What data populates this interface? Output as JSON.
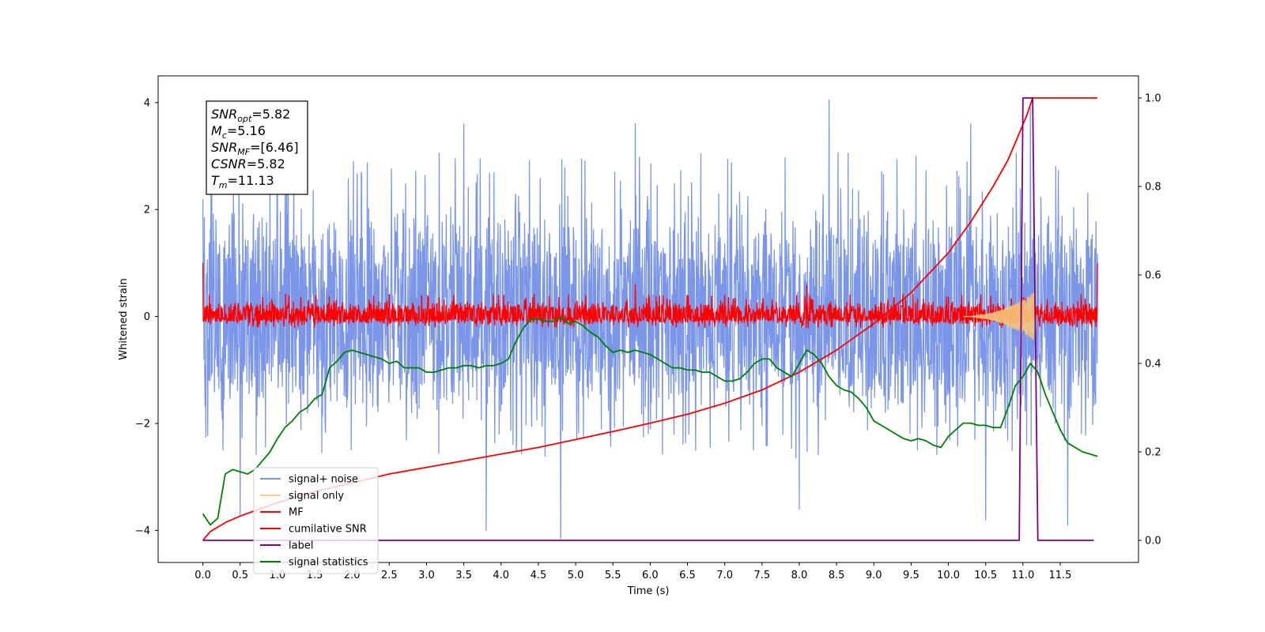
{
  "chart_data": {
    "type": "line",
    "title": "",
    "xlabel": "Time (s)",
    "ylabel_left": "Whitened strain",
    "ylabel_right": "",
    "xlim": [
      -0.6,
      12.55
    ],
    "ylim_left": [
      -4.6,
      4.5
    ],
    "ylim_right": [
      -0.05,
      1.05
    ],
    "x_ticks": [
      0.0,
      0.5,
      1.0,
      1.5,
      2.0,
      2.5,
      3.0,
      3.5,
      4.0,
      4.5,
      5.0,
      5.5,
      6.0,
      6.5,
      7.0,
      7.5,
      8.0,
      8.5,
      9.0,
      9.5,
      10.0,
      10.5,
      11.0,
      11.5
    ],
    "x_tick_labels": [
      "0.0",
      "0.5",
      "1.0",
      "1.5",
      "2.0",
      "2.5",
      "3.0",
      "3.5",
      "4.0",
      "4.5",
      "5.0",
      "5.5",
      "6.0",
      "6.5",
      "7.0",
      "7.5",
      "8.0",
      "8.5",
      "9.0",
      "9.5",
      "10.0",
      "10.5",
      "11.0",
      "11.5"
    ],
    "y_ticks_left": [
      -4,
      -2,
      0,
      2,
      4
    ],
    "y_tick_labels_left": [
      "−4",
      "−2",
      "0",
      "2",
      "4"
    ],
    "y_ticks_right": [
      0.0,
      0.2,
      0.4,
      0.6,
      0.8,
      1.0
    ],
    "y_tick_labels_right": [
      "0.0",
      "0.2",
      "0.4",
      "0.6",
      "0.8",
      "1.0"
    ],
    "legend_placement": "lower-left",
    "annotation": {
      "lines": [
        {
          "sym": "SNR",
          "sub": "opt",
          "value": "=5.82"
        },
        {
          "sym": "M",
          "sub": "c",
          "value": "=5.16"
        },
        {
          "sym": "SNR",
          "sub": "MF",
          "value": "=[6.46]"
        },
        {
          "sym": "CSNR",
          "sub": "",
          "value": "=5.82"
        },
        {
          "sym": "T",
          "sub": "m",
          "value": "=11.13"
        }
      ]
    },
    "series": [
      {
        "name": "signal+ noise",
        "axis": "left",
        "color": "#7b96e8",
        "style": "noise",
        "x_range": [
          0.0,
          12.0
        ],
        "envelope_upper": 2.2,
        "envelope_lower": -1.9,
        "peaks": [
          [
            0.0,
            2.2
          ],
          [
            1.0,
            3.3
          ],
          [
            3.5,
            3.6
          ],
          [
            5.8,
            3.6
          ],
          [
            8.4,
            4.05
          ],
          [
            10.3,
            3.6
          ],
          [
            11.1,
            3.9
          ]
        ],
        "troughs": [
          [
            0.5,
            -3.7
          ],
          [
            3.8,
            -4.0
          ],
          [
            4.8,
            -4.15
          ],
          [
            8.0,
            -3.6
          ],
          [
            10.5,
            -3.8
          ],
          [
            11.6,
            -3.9
          ]
        ]
      },
      {
        "name": "signal only",
        "axis": "left",
        "color": "#f5c77a",
        "style": "chirp",
        "x_range": [
          10.2,
          11.15
        ],
        "peak_amplitude": 0.45
      },
      {
        "name": "MF",
        "axis": "left",
        "color": "#ff0000",
        "style": "noise",
        "x_range": [
          0.0,
          12.0
        ],
        "envelope_upper": 0.3,
        "envelope_lower": -0.15,
        "peaks": [
          [
            0.0,
            1.0
          ],
          [
            5.8,
            0.6
          ],
          [
            8.1,
            0.58
          ],
          [
            12.0,
            1.0
          ]
        ],
        "troughs": []
      },
      {
        "name": "cumilative SNR",
        "axis": "right",
        "color": "#ff0000",
        "style": "line",
        "x": [
          0.0,
          0.1,
          0.3,
          0.5,
          1.0,
          1.5,
          2.0,
          2.5,
          3.0,
          3.5,
          4.0,
          4.5,
          5.0,
          5.5,
          6.0,
          6.5,
          7.0,
          7.5,
          8.0,
          8.5,
          9.0,
          9.5,
          10.0,
          10.3,
          10.6,
          10.8,
          11.0,
          11.05,
          11.1,
          11.13,
          11.2,
          11.5,
          12.0
        ],
        "y": [
          0.0,
          0.02,
          0.04,
          0.055,
          0.085,
          0.11,
          0.13,
          0.15,
          0.165,
          0.18,
          0.195,
          0.21,
          0.228,
          0.246,
          0.265,
          0.285,
          0.31,
          0.34,
          0.38,
          0.43,
          0.49,
          0.56,
          0.65,
          0.72,
          0.8,
          0.86,
          0.94,
          0.96,
          0.985,
          1.0,
          1.0,
          1.0,
          1.0
        ]
      },
      {
        "name": "label",
        "axis": "right",
        "color": "#800080",
        "style": "line",
        "x": [
          0.0,
          10.95,
          11.0,
          11.13,
          11.2,
          11.95
        ],
        "y": [
          0.0,
          0.0,
          1.0,
          1.0,
          0.0,
          0.0
        ]
      },
      {
        "name": "signal statistics",
        "axis": "right",
        "color": "#008000",
        "style": "line",
        "x": [
          0.0,
          0.1,
          0.2,
          0.3,
          0.4,
          0.5,
          0.6,
          0.7,
          0.8,
          0.9,
          1.0,
          1.1,
          1.2,
          1.3,
          1.4,
          1.5,
          1.6,
          1.7,
          1.8,
          1.9,
          2.0,
          2.1,
          2.2,
          2.3,
          2.4,
          2.5,
          2.6,
          2.7,
          2.8,
          2.9,
          3.0,
          3.1,
          3.2,
          3.3,
          3.4,
          3.5,
          3.6,
          3.7,
          3.8,
          3.9,
          4.0,
          4.1,
          4.2,
          4.3,
          4.4,
          4.5,
          4.6,
          4.7,
          4.8,
          4.9,
          5.0,
          5.1,
          5.2,
          5.3,
          5.4,
          5.5,
          5.6,
          5.7,
          5.8,
          5.9,
          6.0,
          6.1,
          6.2,
          6.3,
          6.4,
          6.5,
          6.6,
          6.7,
          6.8,
          6.9,
          7.0,
          7.1,
          7.2,
          7.3,
          7.4,
          7.5,
          7.6,
          7.7,
          7.8,
          7.9,
          8.0,
          8.1,
          8.2,
          8.3,
          8.4,
          8.5,
          8.6,
          8.7,
          8.8,
          8.9,
          9.0,
          9.1,
          9.2,
          9.3,
          9.4,
          9.5,
          9.6,
          9.7,
          9.8,
          9.9,
          10.0,
          10.1,
          10.2,
          10.3,
          10.4,
          10.5,
          10.6,
          10.7,
          10.8,
          10.9,
          11.0,
          11.1,
          11.2,
          11.3,
          11.4,
          11.5,
          11.6,
          11.7,
          11.8,
          11.9,
          12.0
        ],
        "y": [
          0.06,
          0.035,
          0.05,
          0.15,
          0.16,
          0.155,
          0.15,
          0.16,
          0.18,
          0.2,
          0.23,
          0.255,
          0.27,
          0.29,
          0.3,
          0.32,
          0.33,
          0.39,
          0.405,
          0.425,
          0.43,
          0.425,
          0.42,
          0.415,
          0.41,
          0.4,
          0.405,
          0.39,
          0.39,
          0.39,
          0.38,
          0.38,
          0.385,
          0.39,
          0.39,
          0.395,
          0.395,
          0.39,
          0.395,
          0.395,
          0.4,
          0.41,
          0.45,
          0.48,
          0.5,
          0.5,
          0.495,
          0.495,
          0.505,
          0.49,
          0.495,
          0.485,
          0.47,
          0.46,
          0.44,
          0.425,
          0.43,
          0.425,
          0.43,
          0.425,
          0.42,
          0.41,
          0.4,
          0.39,
          0.39,
          0.385,
          0.385,
          0.38,
          0.38,
          0.37,
          0.36,
          0.36,
          0.365,
          0.38,
          0.4,
          0.41,
          0.41,
          0.39,
          0.38,
          0.37,
          0.4,
          0.43,
          0.42,
          0.4,
          0.37,
          0.35,
          0.34,
          0.335,
          0.32,
          0.3,
          0.27,
          0.26,
          0.25,
          0.24,
          0.23,
          0.225,
          0.23,
          0.225,
          0.215,
          0.21,
          0.235,
          0.25,
          0.265,
          0.265,
          0.26,
          0.26,
          0.255,
          0.255,
          0.3,
          0.35,
          0.37,
          0.4,
          0.38,
          0.33,
          0.29,
          0.25,
          0.22,
          0.21,
          0.2,
          0.195,
          0.19
        ]
      }
    ]
  }
}
